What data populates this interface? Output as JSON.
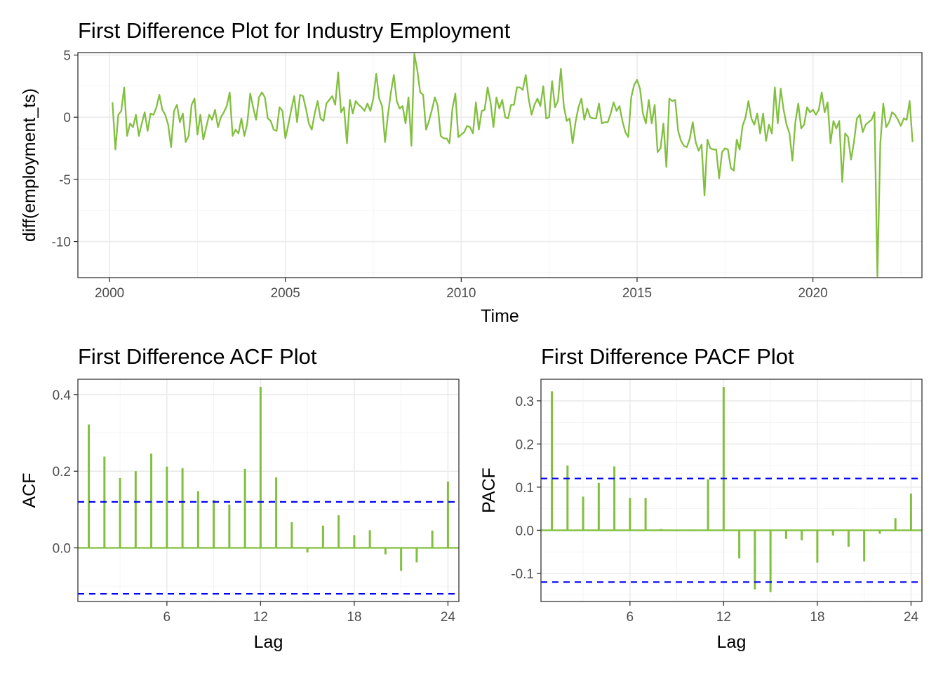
{
  "colors": {
    "series": "#82bf3f",
    "ci": "#0000ff"
  },
  "chart_data": [
    {
      "type": "line",
      "title": "First Difference Plot for Industry Employment",
      "xlabel": "Time",
      "ylabel": "diff(employment_ts)",
      "xlim": [
        1999.1,
        2023.1
      ],
      "ylim": [
        -12.9,
        5.2
      ],
      "x_ticks": [
        2000,
        2005,
        2010,
        2015,
        2020
      ],
      "x_tick_labels": [
        "2000",
        "2005",
        "2010",
        "2015",
        "2020"
      ],
      "y_ticks": [
        -10,
        -5,
        0,
        5
      ],
      "y_tick_labels": [
        "-10",
        "-5",
        "0",
        "5"
      ],
      "grid": true,
      "start": 2000.0833,
      "frequency": 12,
      "values": [
        1.2,
        -2.6,
        0.2,
        0.5,
        2.4,
        -1.5,
        -0.5,
        -0.8,
        0.2,
        -1.5,
        -0.5,
        0.4,
        -1.1,
        0.3,
        0.2,
        0.8,
        1.8,
        0.6,
        0.2,
        -0.6,
        -2.4,
        0.5,
        1.0,
        -0.4,
        0.3,
        -2.0,
        -1.5,
        1.0,
        1.5,
        -1.4,
        0.2,
        -1.8,
        -0.8,
        0.2,
        -0.2,
        0.6,
        -0.8,
        0.0,
        0.4,
        0.9,
        2.0,
        -1.5,
        -1.0,
        -1.3,
        -0.1,
        -1.5,
        -0.5,
        1.9,
        0.8,
        -0.2,
        1.6,
        2.0,
        1.6,
        -0.1,
        -0.3,
        -1.0,
        -1.1,
        0.8,
        0.5,
        -1.7,
        -0.6,
        0.6,
        1.7,
        -0.4,
        1.8,
        1.7,
        0.7,
        -0.5,
        -1.0,
        0.3,
        1.3,
        -0.1,
        -0.3,
        1.1,
        1.4,
        1.7,
        1.0,
        3.6,
        0.4,
        0.8,
        -2.1,
        1.4,
        0.3,
        1.3,
        1.0,
        0.8,
        0.5,
        1.1,
        0.5,
        1.5,
        3.5,
        1.5,
        0.9,
        -2.0,
        0.2,
        2.0,
        3.4,
        1.3,
        0.7,
        0.9,
        -0.5,
        1.6,
        -2.3,
        5.1,
        3.8,
        2.0,
        1.8,
        -1.0,
        -0.3,
        0.6,
        1.6,
        0.9,
        -1.5,
        -1.7,
        -1.7,
        -2.1,
        0.7,
        1.9,
        -1.6,
        -1.4,
        -1.2,
        -0.7,
        -0.8,
        -1.3,
        1.2,
        -1.0,
        0.5,
        0.6,
        2.4,
        1.2,
        -0.8,
        1.6,
        0.7,
        1.4,
        0.0,
        -0.1,
        1.0,
        1.0,
        2.4,
        2.4,
        2.2,
        3.4,
        1.5,
        0.2,
        1.0,
        1.5,
        0.9,
        2.5,
        -0.1,
        0.0,
        2.9,
        0.8,
        1.3,
        3.9,
        0.9,
        -0.3,
        -0.1,
        -2.1,
        -0.4,
        0.8,
        1.5,
        -0.2,
        0.7,
        0.0,
        -0.1,
        -0.1,
        1.1,
        -0.5,
        -0.4,
        -0.4,
        0.3,
        1.2,
        0.5,
        0.9,
        -0.3,
        -1.2,
        -1.6,
        1.6,
        2.6,
        3.0,
        2.3,
        0.3,
        -0.5,
        1.4,
        -0.5,
        1.0,
        -2.8,
        -2.5,
        -0.5,
        -4.0,
        1.5,
        1.3,
        1.4,
        -1.1,
        -1.9,
        -2.3,
        -2.4,
        -1.7,
        -0.4,
        -2.0,
        -2.7,
        -2.2,
        -6.3,
        -1.8,
        -2.5,
        -2.6,
        -2.6,
        -4.9,
        -2.8,
        -2.5,
        -2.6,
        -4.1,
        -4.3,
        -1.8,
        -2.6,
        -0.7,
        0.0,
        1.3,
        -0.1,
        -0.6,
        0.3,
        -1.3,
        0.3,
        -1.9,
        -0.6,
        -1.3,
        2.4,
        -0.5,
        2.3,
        0.6,
        -0.6,
        -1.3,
        -3.5,
        -0.4,
        1.1,
        -0.9,
        -0.6,
        0.8,
        0.4,
        0.6,
        0.2,
        0.6,
        2.0,
        0.4,
        1.2,
        -2.1,
        -0.3,
        -0.9,
        -0.3,
        -5.2,
        -1.3,
        -1.6,
        -3.4,
        -2.0,
        -0.1,
        0.2,
        -1.2,
        -0.6,
        -0.4,
        -0.2,
        0.4,
        -12.8,
        -2.1,
        1.1,
        -0.8,
        -0.4,
        0.4,
        0.2,
        -0.2,
        -0.7,
        -0.1,
        -0.2,
        1.3,
        -2.0
      ]
    },
    {
      "type": "bar",
      "title": "First Difference ACF Plot",
      "xlabel": "Lag",
      "ylabel": "ACF",
      "xlim": [
        0.3,
        24.7
      ],
      "ylim": [
        -0.14,
        0.44
      ],
      "x_ticks": [
        6,
        12,
        18,
        24
      ],
      "x_tick_labels": [
        "6",
        "12",
        "18",
        "24"
      ],
      "y_ticks": [
        0.0,
        0.2,
        0.4
      ],
      "y_tick_labels": [
        "0.0",
        "0.2",
        "0.4"
      ],
      "grid": true,
      "lags": [
        1,
        2,
        3,
        4,
        5,
        6,
        7,
        8,
        9,
        10,
        11,
        12,
        13,
        14,
        15,
        16,
        17,
        18,
        19,
        20,
        21,
        22,
        23,
        24
      ],
      "values": [
        0.322,
        0.238,
        0.182,
        0.2,
        0.246,
        0.212,
        0.208,
        0.148,
        0.125,
        0.113,
        0.206,
        0.42,
        0.184,
        0.067,
        -0.012,
        0.058,
        0.085,
        0.033,
        0.046,
        -0.017,
        -0.06,
        -0.038,
        0.045,
        0.173
      ],
      "ci": 0.12
    },
    {
      "type": "bar",
      "title": "First Difference PACF Plot",
      "xlabel": "Lag",
      "ylabel": "PACF",
      "xlim": [
        0.3,
        24.7
      ],
      "ylim": [
        -0.165,
        0.35
      ],
      "x_ticks": [
        6,
        12,
        18,
        24
      ],
      "x_tick_labels": [
        "6",
        "12",
        "18",
        "24"
      ],
      "y_ticks": [
        -0.1,
        0.0,
        0.1,
        0.2,
        0.3
      ],
      "y_tick_labels": [
        "-0.1",
        "0.0",
        "0.1",
        "0.2",
        "0.3"
      ],
      "grid": true,
      "lags": [
        1,
        2,
        3,
        4,
        5,
        6,
        7,
        8,
        9,
        10,
        11,
        12,
        13,
        14,
        15,
        16,
        17,
        18,
        19,
        20,
        21,
        22,
        23,
        24
      ],
      "values": [
        0.322,
        0.15,
        0.078,
        0.11,
        0.148,
        0.075,
        0.075,
        0.003,
        -0.002,
        -0.002,
        0.118,
        0.332,
        -0.065,
        -0.137,
        -0.143,
        -0.02,
        -0.023,
        -0.075,
        -0.012,
        -0.038,
        -0.072,
        -0.008,
        0.028,
        0.085
      ],
      "ci": 0.12
    }
  ]
}
